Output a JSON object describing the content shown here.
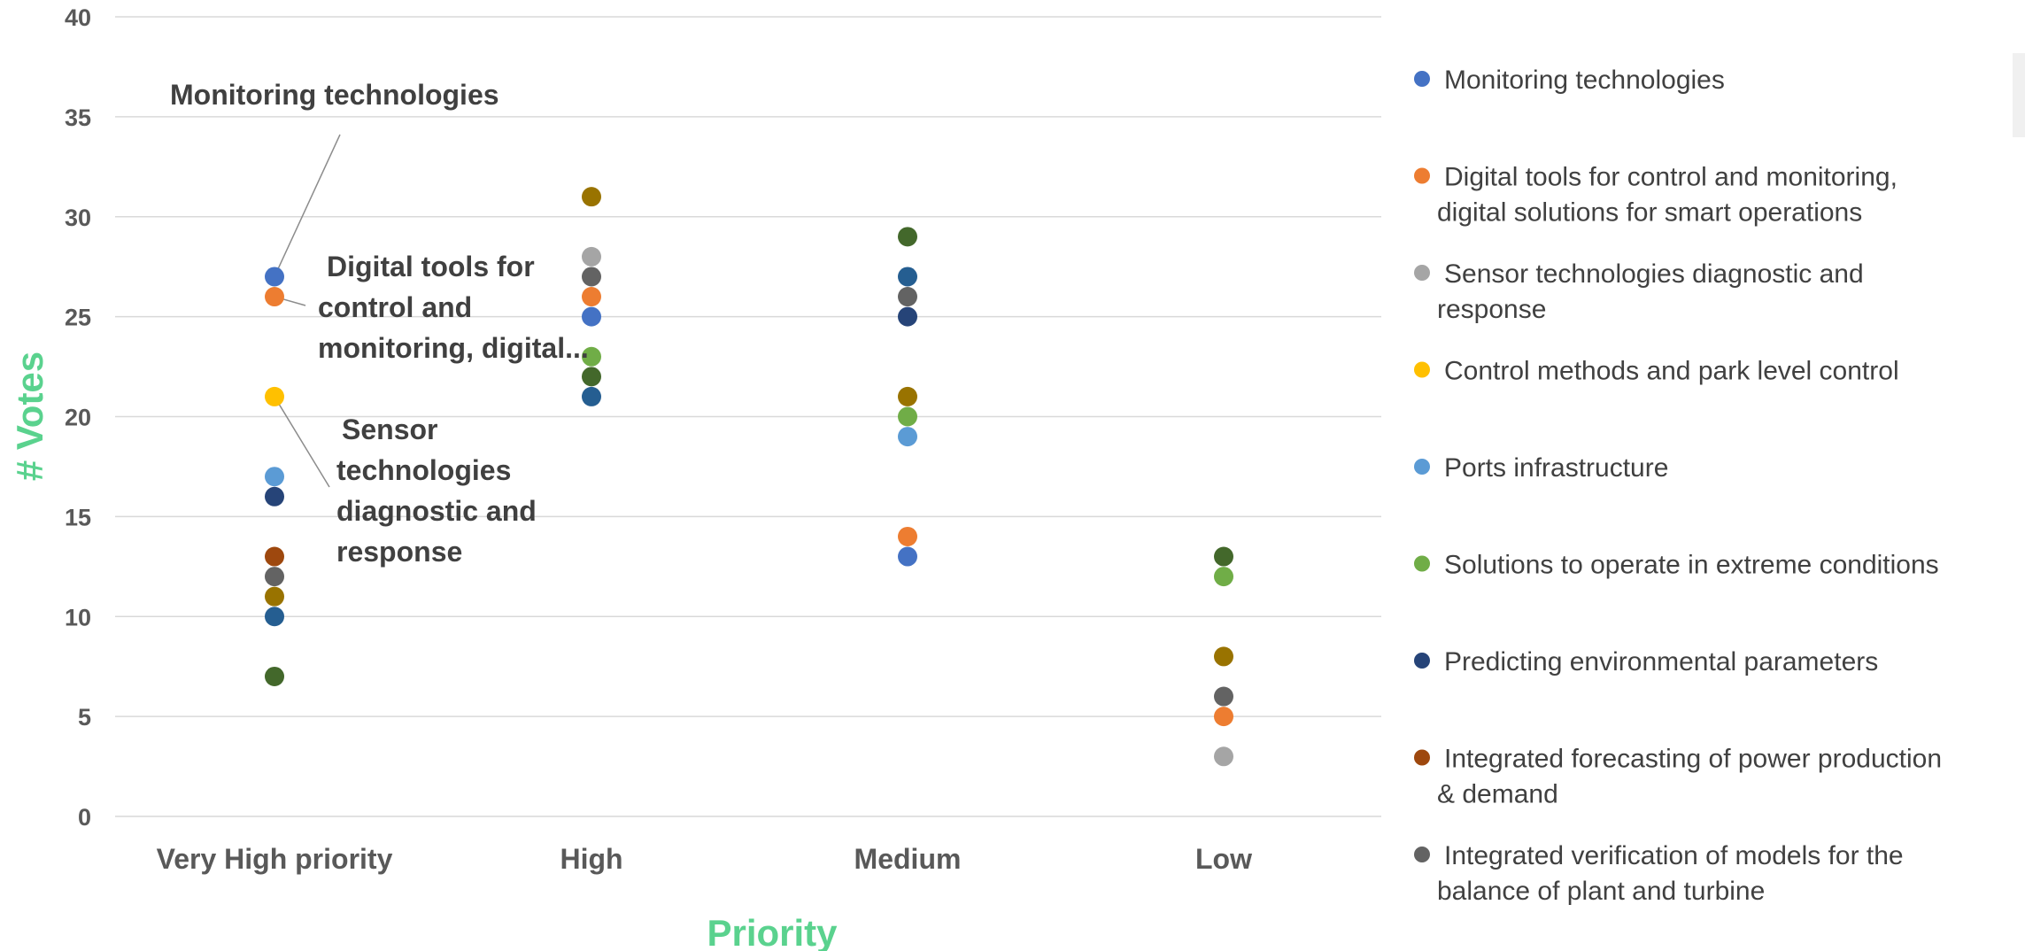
{
  "chart_data": {
    "type": "scatter",
    "xlabel": "Priority",
    "ylabel": "# Votes",
    "ylim": [
      0,
      40
    ],
    "yticks": [
      0,
      5,
      10,
      15,
      20,
      25,
      30,
      35,
      40
    ],
    "categories": [
      "Very High priority",
      "High",
      "Medium",
      "Low"
    ],
    "grid": true,
    "legend_position": "right",
    "series": [
      {
        "name": "Monitoring technologies",
        "color": "#4472c4",
        "values": [
          27,
          25,
          13,
          null
        ]
      },
      {
        "name": "Digital tools for control and monitoring, digital solutions for smart operations",
        "color": "#ed7d31",
        "values": [
          26,
          26,
          14,
          5
        ]
      },
      {
        "name": "Sensor technologies diagnostic and response",
        "color": "#a5a5a5",
        "values": [
          null,
          28,
          null,
          3
        ]
      },
      {
        "name": "Control methods and park level control",
        "color": "#ffc000",
        "values": [
          21,
          null,
          null,
          null
        ]
      },
      {
        "name": "Ports infrastructure",
        "color": "#5b9bd5",
        "values": [
          17,
          null,
          19,
          null
        ]
      },
      {
        "name": "Solutions to operate in extreme conditions",
        "color": "#70ad47",
        "values": [
          null,
          23,
          20,
          12
        ]
      },
      {
        "name": "Predicting environmental parameters",
        "color": "#264478",
        "values": [
          16,
          null,
          25,
          null
        ]
      },
      {
        "name": "Integrated forecasting of power production & demand",
        "color": "#9e480e",
        "values": [
          13,
          null,
          null,
          null
        ]
      },
      {
        "name": "Integrated verification of models for the balance of plant and turbine",
        "color": "#636363",
        "values": [
          12,
          27,
          26,
          6
        ]
      },
      {
        "name": "",
        "color": "#997300",
        "values": [
          11,
          31,
          21,
          8
        ]
      },
      {
        "name": "",
        "color": "#255e91",
        "values": [
          10,
          21,
          27,
          null
        ]
      },
      {
        "name": "",
        "color": "#43682b",
        "values": [
          7,
          22,
          29,
          13
        ]
      }
    ],
    "annotations": [
      {
        "lines": [
          "Monitoring technologies"
        ],
        "series_index": 0,
        "category_index": 0
      },
      {
        "lines": [
          "Digital tools for",
          "control and",
          "monitoring, digital..."
        ],
        "series_index": 1,
        "category_index": 0
      },
      {
        "lines": [
          "Sensor",
          "technologies",
          "diagnostic and",
          "response"
        ],
        "series_index": 3,
        "category_index": 0
      }
    ]
  }
}
